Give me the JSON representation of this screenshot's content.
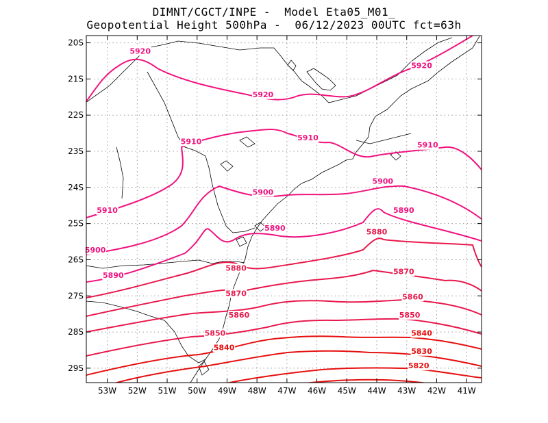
{
  "header": {
    "line1": "DIMNT/CGCT/INPE -  Model Eta05_M01_",
    "line2": "Geopotential Height 500hPa -  06/12/2023 00UTC fct=63h"
  },
  "chart_data": {
    "type": "contour-map",
    "field": "Geopotential Height 500hPa",
    "x_ticks": [
      "53W",
      "52W",
      "51W",
      "50W",
      "49W",
      "48W",
      "47W",
      "46W",
      "45W",
      "44W",
      "43W",
      "42W",
      "41W"
    ],
    "y_ticks": [
      "20S",
      "21S",
      "22S",
      "23S",
      "24S",
      "25S",
      "26S",
      "27S",
      "28S",
      "29S"
    ],
    "lon_range": [
      -53.7,
      -40.5
    ],
    "lat_range": [
      -29.4,
      -19.8
    ],
    "grid": "dotted",
    "contour_levels": [
      5920,
      5910,
      5900,
      5890,
      5880,
      5870,
      5860,
      5850,
      5840,
      5830,
      5820
    ],
    "contour_labels": [
      {
        "text": "5920",
        "lon": -51.9,
        "lat": -20.3
      },
      {
        "text": "5920",
        "lon": -47.8,
        "lat": -21.5
      },
      {
        "text": "5920",
        "lon": -42.5,
        "lat": -20.7
      },
      {
        "text": "5910",
        "lon": -50.2,
        "lat": -22.8
      },
      {
        "text": "5910",
        "lon": -46.3,
        "lat": -22.7
      },
      {
        "text": "5910",
        "lon": -42.3,
        "lat": -22.9
      },
      {
        "text": "5910",
        "lon": -53.0,
        "lat": -24.7
      },
      {
        "text": "5900",
        "lon": -47.8,
        "lat": -24.2
      },
      {
        "text": "5900",
        "lon": -43.8,
        "lat": -23.9
      },
      {
        "text": "5900",
        "lon": -53.4,
        "lat": -25.8
      },
      {
        "text": "5890",
        "lon": -47.4,
        "lat": -25.2
      },
      {
        "text": "5890",
        "lon": -43.1,
        "lat": -24.7
      },
      {
        "text": "5890",
        "lon": -52.8,
        "lat": -26.5
      },
      {
        "text": "5880",
        "lon": -48.7,
        "lat": -26.3
      },
      {
        "text": "5880",
        "lon": -44.0,
        "lat": -25.3
      },
      {
        "text": "5870",
        "lon": -48.7,
        "lat": -27.0
      },
      {
        "text": "5870",
        "lon": -43.1,
        "lat": -26.4
      },
      {
        "text": "5860",
        "lon": -48.6,
        "lat": -27.6
      },
      {
        "text": "5860",
        "lon": -42.8,
        "lat": -27.1
      },
      {
        "text": "5850",
        "lon": -49.4,
        "lat": -28.1
      },
      {
        "text": "5850",
        "lon": -42.9,
        "lat": -27.6
      },
      {
        "text": "5840",
        "lon": -49.1,
        "lat": -28.5
      },
      {
        "text": "5840",
        "lon": -42.5,
        "lat": -28.1
      },
      {
        "text": "5830",
        "lon": -42.5,
        "lat": -28.6
      },
      {
        "text": "5820",
        "lon": -42.6,
        "lat": -29.0
      }
    ],
    "colors": {
      "high": "#f0127f",
      "mid": "#e8184c",
      "low": "#e60f0f",
      "coast": "#000000",
      "grid": "#999999"
    }
  }
}
